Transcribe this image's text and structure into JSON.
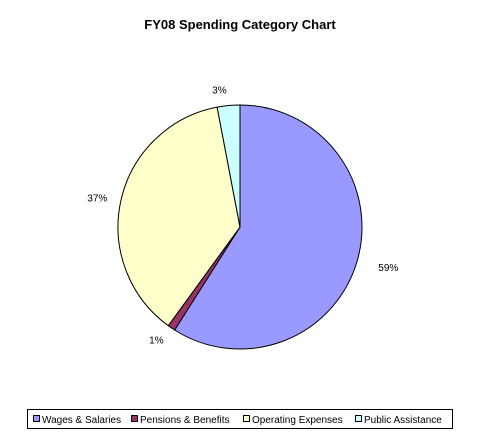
{
  "chart_data": {
    "type": "pie",
    "title": "FY08 Spending Category Chart",
    "categories": [
      "Wages & Salaries",
      "Pensions & Benefits",
      "Operating Expenses",
      "Public Assistance"
    ],
    "values": [
      59,
      1,
      37,
      3
    ],
    "labels": [
      "59%",
      "1%",
      "37%",
      "3%"
    ],
    "colors": [
      "#9999FF",
      "#993366",
      "#FFFFCC",
      "#CCFFFF"
    ],
    "legend_position": "bottom"
  }
}
